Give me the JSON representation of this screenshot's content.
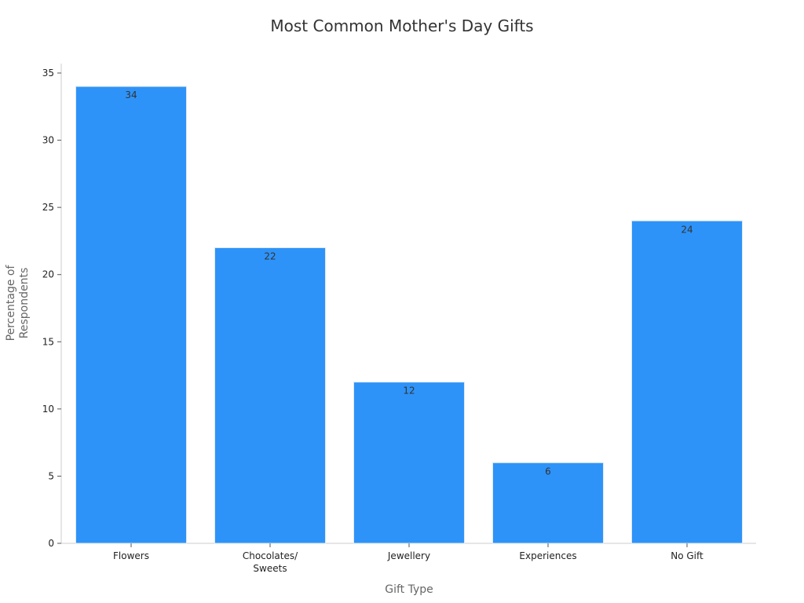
{
  "chart_data": {
    "type": "bar",
    "title": "Most Common Mother's Day Gifts",
    "xlabel": "Gift Type",
    "ylabel": [
      "Percentage of",
      "Respondents"
    ],
    "categories": [
      [
        "Flowers"
      ],
      [
        "Chocolates/",
        "Sweets"
      ],
      [
        "Jewellery"
      ],
      [
        "Experiences"
      ],
      [
        "No Gift"
      ]
    ],
    "values": [
      34,
      22,
      12,
      6,
      24
    ],
    "data_labels": [
      "34",
      "22",
      "12",
      "6",
      "24"
    ],
    "ylim": [
      0,
      35
    ],
    "yticks": [
      0,
      5,
      10,
      15,
      20,
      25,
      30,
      35
    ],
    "ytick_labels": [
      "0",
      "5",
      "10",
      "15",
      "20",
      "25",
      "30",
      "35"
    ],
    "grid": false,
    "legend": "none",
    "colors": {
      "bar": "#2e93f8",
      "bar_edge": "#dfe9f3",
      "axis": "#cccccc",
      "tick_text": "#222222",
      "label_text": "#666666",
      "title_text": "#333333",
      "data_label_text": "#333333"
    }
  }
}
